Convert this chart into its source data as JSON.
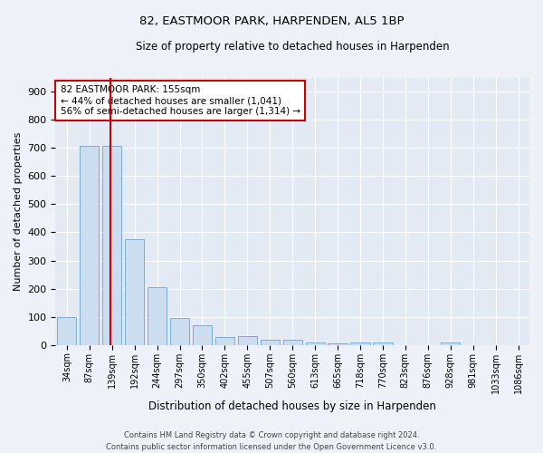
{
  "title": "82, EASTMOOR PARK, HARPENDEN, AL5 1BP",
  "subtitle": "Size of property relative to detached houses in Harpenden",
  "xlabel": "Distribution of detached houses by size in Harpenden",
  "ylabel": "Number of detached properties",
  "bar_color": "#ccddf0",
  "bar_edge_color": "#7aadd4",
  "vline_color": "#cc0000",
  "vline_x_index": 1.93,
  "categories": [
    "34sqm",
    "87sqm",
    "139sqm",
    "192sqm",
    "244sqm",
    "297sqm",
    "350sqm",
    "402sqm",
    "455sqm",
    "507sqm",
    "560sqm",
    "613sqm",
    "665sqm",
    "718sqm",
    "770sqm",
    "823sqm",
    "876sqm",
    "928sqm",
    "981sqm",
    "1033sqm",
    "1086sqm"
  ],
  "values": [
    100,
    708,
    708,
    375,
    205,
    95,
    70,
    28,
    30,
    18,
    20,
    10,
    7,
    8,
    10,
    0,
    0,
    8,
    0,
    0,
    0
  ],
  "ylim": [
    0,
    950
  ],
  "yticks": [
    0,
    100,
    200,
    300,
    400,
    500,
    600,
    700,
    800,
    900
  ],
  "annotation_title": "82 EASTMOOR PARK: 155sqm",
  "annotation_line1": "← 44% of detached houses are smaller (1,041)",
  "annotation_line2": "56% of semi-detached houses are larger (1,314) →",
  "footer1": "Contains HM Land Registry data © Crown copyright and database right 2024.",
  "footer2": "Contains public sector information licensed under the Open Government Licence v3.0.",
  "bg_color": "#eef2f8",
  "plot_bg_color": "#e4eaf4"
}
